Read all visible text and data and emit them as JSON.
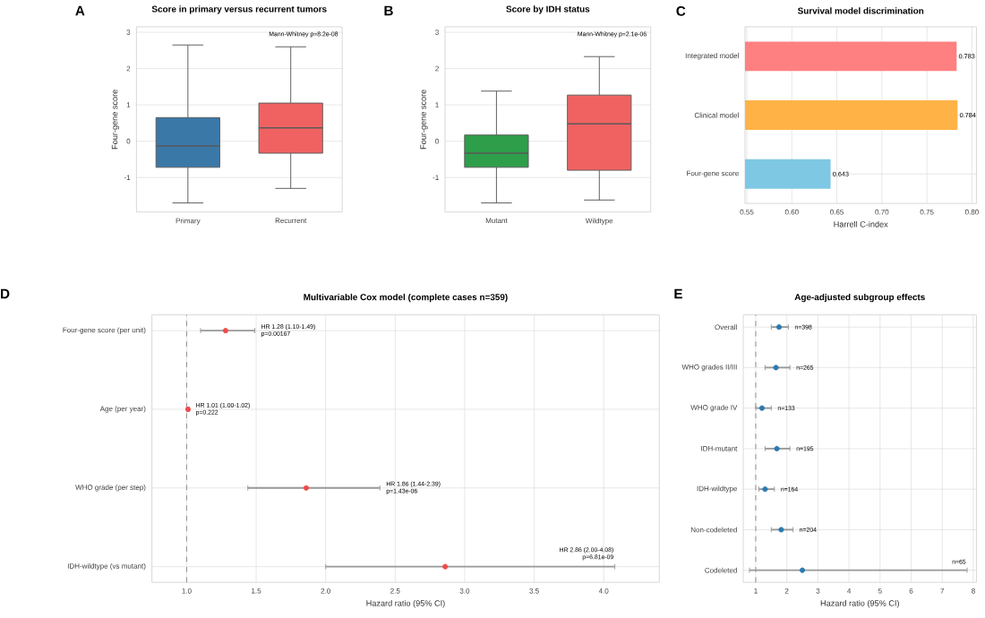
{
  "chart_data": [
    {
      "type": "box",
      "title": "Score in primary versus recurrent tumors",
      "ylabel": "Four-gene score",
      "categories": [
        "Primary",
        "Recurrent"
      ],
      "boxes": [
        {
          "low": -1.7,
          "q1": -0.72,
          "median": -0.13,
          "q3": 0.65,
          "high": 2.65
        },
        {
          "low": -1.3,
          "q1": -0.33,
          "median": 0.37,
          "q3": 1.05,
          "high": 2.6
        }
      ],
      "colors": [
        "#3a78a8",
        "#f06262"
      ],
      "ylim": [
        -1.95,
        3.15
      ],
      "yticks": [
        -1,
        0,
        1,
        2,
        3
      ],
      "grid": "y",
      "annotations": [
        "A",
        "Mann-Whitney p=8.2e-08"
      ]
    },
    {
      "type": "box",
      "title": "Score by IDH status",
      "ylabel": "Four-gene score",
      "categories": [
        "Mutant",
        "Wildtype"
      ],
      "boxes": [
        {
          "low": -1.7,
          "q1": -0.72,
          "median": -0.33,
          "q3": 0.17,
          "high": 1.38
        },
        {
          "low": -1.62,
          "q1": -0.8,
          "median": 0.48,
          "q3": 1.27,
          "high": 2.33
        }
      ],
      "colors": [
        "#2e9e4a",
        "#f06262"
      ],
      "ylim": [
        -1.95,
        3.15
      ],
      "yticks": [
        -1,
        0,
        1,
        2,
        3
      ],
      "grid": "y",
      "annotations": [
        "B",
        "Mann-Whitney p=2.1e-06"
      ]
    },
    {
      "type": "bar",
      "orientation": "horizontal",
      "title": "Survival model discrimination",
      "xlabel": "Harrell C-index",
      "categories": [
        "Integrated model",
        "Clinical model",
        "Four-gene score"
      ],
      "values": [
        0.783,
        0.784,
        0.643
      ],
      "colors": [
        "#ff8080",
        "#ffb347",
        "#7ec8e3"
      ],
      "xlim": [
        0.548,
        0.805
      ],
      "xticks": [
        0.55,
        {
          "value": 0.6,
          "label": "0.60"
        },
        0.65,
        {
          "value": 0.7,
          "label": "0.70"
        },
        0.75,
        {
          "value": 0.8,
          "label": "0.80"
        }
      ],
      "data_labels": true,
      "grid": true,
      "annotations": [
        "C"
      ]
    },
    {
      "type": "scatter",
      "orientation": "horizontal",
      "title": "Multivariable Cox model (complete cases n=359)",
      "xlabel": "Hazard ratio (95% CI)",
      "categories": [
        "Four-gene score (per unit)",
        "Age (per year)",
        "WHO grade (per step)",
        "IDH-wildtype (vs mutant)"
      ],
      "values": [
        1.28,
        1.01,
        1.86,
        2.86
      ],
      "errors": [
        [
          1.1,
          1.49
        ],
        [
          1.0,
          1.02
        ],
        [
          1.44,
          2.39
        ],
        [
          2.0,
          4.08
        ]
      ],
      "color": "#f04a4a",
      "marker": "circle",
      "xlim": [
        0.75,
        4.4
      ],
      "xticks": [
        {
          "value": 1,
          "label": "1.0"
        },
        1.5,
        {
          "value": 2,
          "label": "2.0"
        },
        2.5,
        {
          "value": 3,
          "label": "3.0"
        },
        3.5,
        {
          "value": 4,
          "label": "4.0"
        }
      ],
      "grid": true,
      "ref_lines": [
        {
          "axis": "x",
          "value": 1,
          "line_style": "dashed"
        }
      ],
      "annotations": [
        "D",
        "HR 1.28 (1.10-1.49)",
        "p=0.00167",
        "HR 1.01 (1.00-1.02)",
        "p=0.222",
        "HR 1.86 (1.44-2.39)",
        "p=1.43e-06",
        "HR 2.86 (2.00-4.08)",
        "p=6.81e-09"
      ]
    },
    {
      "type": "scatter",
      "orientation": "horizontal",
      "title": "Age-adjusted subgroup effects",
      "xlabel": "Hazard ratio (95% CI)",
      "categories": [
        "Overall",
        "WHO grades II/III",
        "WHO grade IV",
        "IDH-mutant",
        "IDH-wildtype",
        "Non-codeleted",
        "Codeleted"
      ],
      "values": [
        1.75,
        1.65,
        1.2,
        1.68,
        1.3,
        1.82,
        2.5
      ],
      "errors": [
        [
          1.5,
          2.05
        ],
        [
          1.3,
          2.1
        ],
        [
          1.0,
          1.5
        ],
        [
          1.3,
          2.1
        ],
        [
          1.1,
          1.6
        ],
        [
          1.5,
          2.2
        ],
        [
          0.8,
          7.8
        ]
      ],
      "color": "#2a7ab0",
      "marker": "circle",
      "xlim": [
        0.6,
        8.1
      ],
      "xticks": [
        1,
        2,
        3,
        4,
        5,
        6,
        7,
        8
      ],
      "grid": true,
      "ref_lines": [
        {
          "axis": "x",
          "value": 1,
          "line_style": "dashed"
        }
      ],
      "annotations": [
        "E",
        "n=398",
        "n=265",
        "n=133",
        "n=195",
        "n=164",
        "n=204",
        "n=65"
      ]
    }
  ]
}
